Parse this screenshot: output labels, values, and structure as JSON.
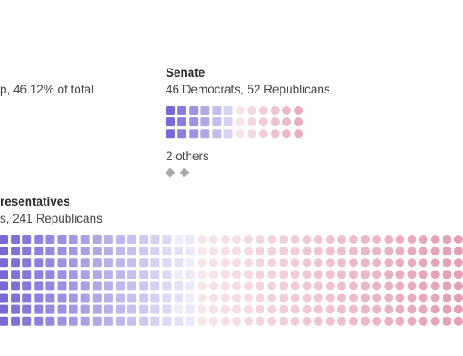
{
  "top_left": {
    "text": "p, 46.12% of total"
  },
  "senate": {
    "title": "Senate",
    "subtitle": "46 Democrats, 52 Republicans",
    "others_label": "2 others"
  },
  "house": {
    "title": "resentatives",
    "subtitle": "s, 241 Republicans"
  },
  "chart_data": [
    {
      "type": "waffle",
      "title": "Senate",
      "subtitle": "46 Democrats, 52 Republicans",
      "categories": [
        "Democrats",
        "Republicans",
        "Others"
      ],
      "values": [
        46,
        52,
        2
      ],
      "visible_units": {
        "Democrats": 18,
        "Republicans": 18,
        "Others": 2
      },
      "colors": {
        "Democrats": "#7a68d6",
        "Republicans": "#d9708f",
        "Others": "#a9a9a9"
      }
    },
    {
      "type": "waffle",
      "title": "resentatives",
      "subtitle": "s, 241 Republicans",
      "categories": [
        "Democrats",
        "Republicans"
      ],
      "values": [
        null,
        241
      ],
      "colors": {
        "Democrats": "#7a68d6",
        "Republicans": "#d9708f"
      }
    }
  ]
}
